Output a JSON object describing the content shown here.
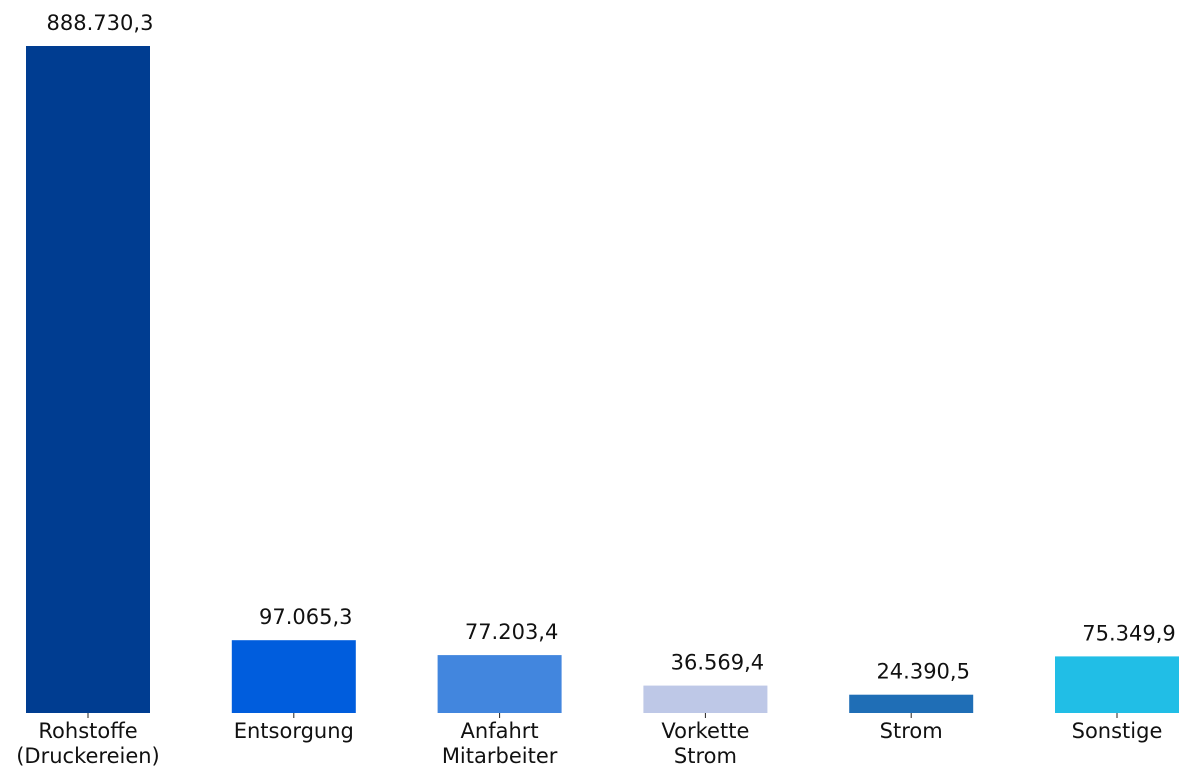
{
  "chart_data": {
    "type": "bar",
    "categories": [
      [
        "Rohstoffe",
        "(Druckereien)"
      ],
      [
        "Entsorgung"
      ],
      [
        "Anfahrt",
        "Mitarbeiter"
      ],
      [
        "Vorkette",
        "Strom"
      ],
      [
        "Strom"
      ],
      [
        "Sonstige"
      ]
    ],
    "values": [
      888730.3,
      97065.3,
      77203.4,
      36569.4,
      24390.5,
      75349.9
    ],
    "value_labels": [
      "888.730,3",
      "97.065,3",
      "77.203,4",
      "36.569,4",
      "24.390,5",
      "75.349,9"
    ],
    "colors": [
      "#003d91",
      "#005ddd",
      "#4286de",
      "#bec8e7",
      "#1f6eb6",
      "#21bee6"
    ],
    "ylim": [
      0,
      888730.3
    ],
    "grid": false,
    "legend": "none"
  }
}
